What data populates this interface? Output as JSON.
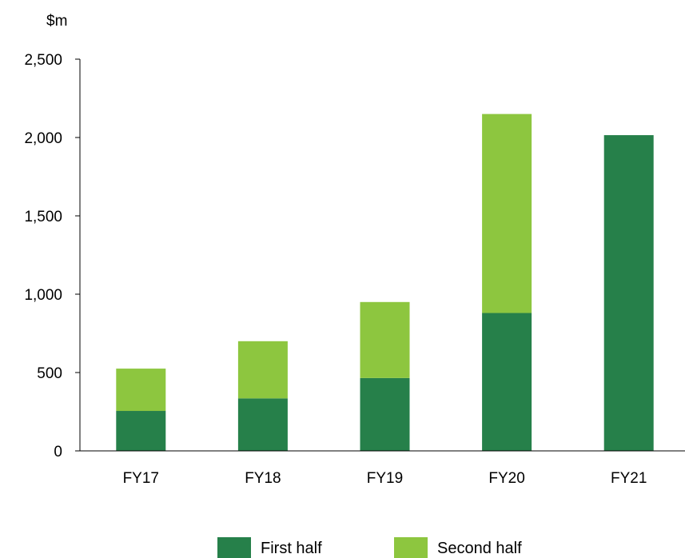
{
  "chart_data": {
    "type": "bar",
    "stacked": true,
    "ylabel": "$m",
    "ylim": [
      0,
      2500
    ],
    "yticks": [
      0,
      500,
      1000,
      1500,
      2000,
      2500
    ],
    "ytick_labels": [
      "0",
      "500",
      "1,000",
      "1,500",
      "2,000",
      "2,500"
    ],
    "categories": [
      "FY17",
      "FY18",
      "FY19",
      "FY20",
      "FY21"
    ],
    "series": [
      {
        "name": "First half",
        "color": "#26804a",
        "values": [
          255,
          335,
          465,
          880,
          2015
        ]
      },
      {
        "name": "Second half",
        "color": "#8dc63f",
        "values": [
          270,
          365,
          485,
          1270,
          0
        ]
      }
    ],
    "grid": false,
    "legend": "bottom-center"
  }
}
